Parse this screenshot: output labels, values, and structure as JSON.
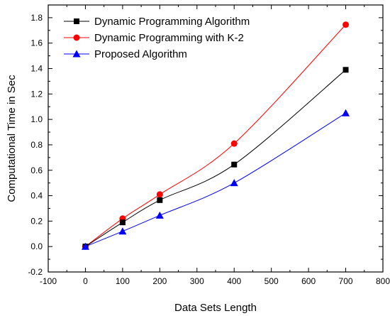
{
  "chart_data": {
    "type": "line",
    "title": "",
    "xlabel": "Data Sets Length",
    "ylabel": "Computational Time in Sec",
    "xlim": [
      -100,
      800
    ],
    "ylim": [
      -0.2,
      1.9
    ],
    "x_ticks": [
      "-100",
      "0",
      "100",
      "200",
      "300",
      "400",
      "500",
      "600",
      "700",
      "800"
    ],
    "y_ticks": [
      "-0.2",
      "0.0",
      "0.2",
      "0.4",
      "0.6",
      "0.8",
      "1.0",
      "1.2",
      "1.4",
      "1.6",
      "1.8"
    ],
    "grid": false,
    "legend_position": "top-left",
    "series": [
      {
        "name": "Dynamic Programming Algorithm",
        "color": "#000000",
        "marker": "square",
        "x": [
          0,
          100,
          200,
          400,
          700
        ],
        "y": [
          0.0,
          0.19,
          0.365,
          0.645,
          1.39
        ]
      },
      {
        "name": "Dynamic Programming with K-2",
        "color": "#ff0000",
        "marker": "circle",
        "x": [
          0,
          100,
          200,
          400,
          700
        ],
        "y": [
          0.0,
          0.22,
          0.41,
          0.81,
          1.745
        ]
      },
      {
        "name": "Proposed Algorithm",
        "color": "#0000ff",
        "marker": "triangle",
        "x": [
          0,
          100,
          200,
          400,
          700
        ],
        "y": [
          0.0,
          0.12,
          0.245,
          0.5,
          1.05
        ]
      }
    ]
  }
}
